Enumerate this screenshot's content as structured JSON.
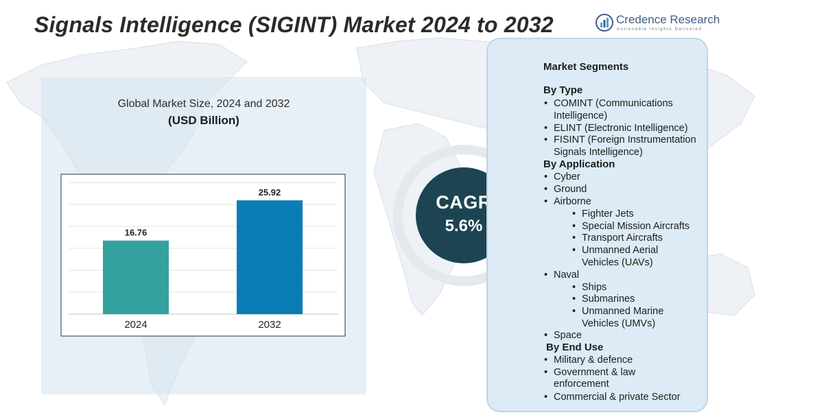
{
  "title": "Signals Intelligence (SIGINT) Market 2024  to 2032",
  "logo": {
    "name": "Credence Research",
    "tagline": "Actionable Insights Delivered",
    "icon": "bar-chart-circle-icon"
  },
  "chart_data": {
    "type": "bar",
    "title": "Global Market Size, 2024 and 2032",
    "ylabel": "(USD Billion)",
    "xlabel": "",
    "categories": [
      "2024",
      "2032"
    ],
    "values": [
      16.76,
      25.92
    ],
    "value_labels": [
      "16.76",
      "25.92"
    ],
    "colors": [
      "#35a19f",
      "#0a7db5"
    ],
    "ylim": [
      0,
      30
    ],
    "grid": true
  },
  "cagr": {
    "label": "CAGR",
    "value": "5.6%"
  },
  "segments": {
    "heading": "Market Segments",
    "by_type": {
      "label": "By Type",
      "items": [
        "COMINT (Communications",
        "Intelligence)",
        "ELINT (Electronic Intelligence)",
        "FISINT (Foreign Instrumentation",
        "Signals Intelligence)"
      ]
    },
    "by_application": {
      "label": "By Application",
      "items": [
        "Cyber",
        "Ground",
        "Airborne"
      ],
      "airborne_sub": [
        "Fighter Jets",
        "Special Mission Aircrafts",
        "Transport Aircrafts",
        "Unmanned Aerial",
        "Vehicles (UAVs)"
      ],
      "naval": "Naval",
      "naval_sub": [
        "Ships",
        "Submarines",
        "Unmanned Marine",
        "Vehicles (UMVs)"
      ],
      "space": "Space"
    },
    "by_end_use": {
      "label": "By End Use",
      "items": [
        "Military & defence",
        "Government & law",
        "enforcement",
        "Commercial & private Sector"
      ]
    }
  }
}
